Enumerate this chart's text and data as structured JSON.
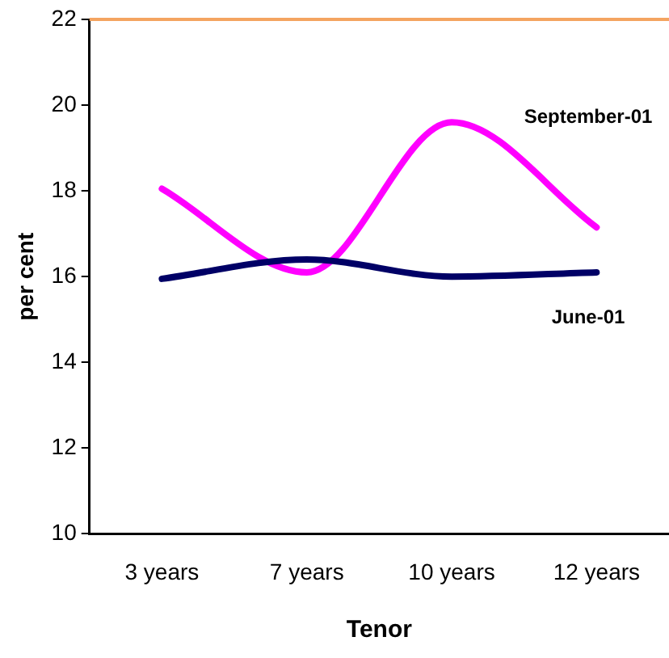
{
  "chart_data": {
    "type": "line",
    "xlabel": "Tenor",
    "ylabel": "per cent",
    "categories": [
      "3 years",
      "7 years",
      "10 years",
      "12 years"
    ],
    "series": [
      {
        "name": "June-01",
        "color": "#000066",
        "values": [
          15.95,
          16.4,
          16.0,
          16.1
        ]
      },
      {
        "name": "September-01",
        "color": "#ff00ff",
        "values": [
          18.05,
          16.1,
          19.6,
          17.15
        ]
      }
    ],
    "ylim": [
      10,
      22
    ],
    "yticks": [
      10,
      12,
      14,
      16,
      18,
      20,
      22
    ],
    "grid": false,
    "legend": false,
    "marker": "none",
    "line_style": "solid",
    "ref_lines": [
      {
        "axis": "y",
        "value": 22,
        "color": "#f4a460"
      }
    ]
  }
}
